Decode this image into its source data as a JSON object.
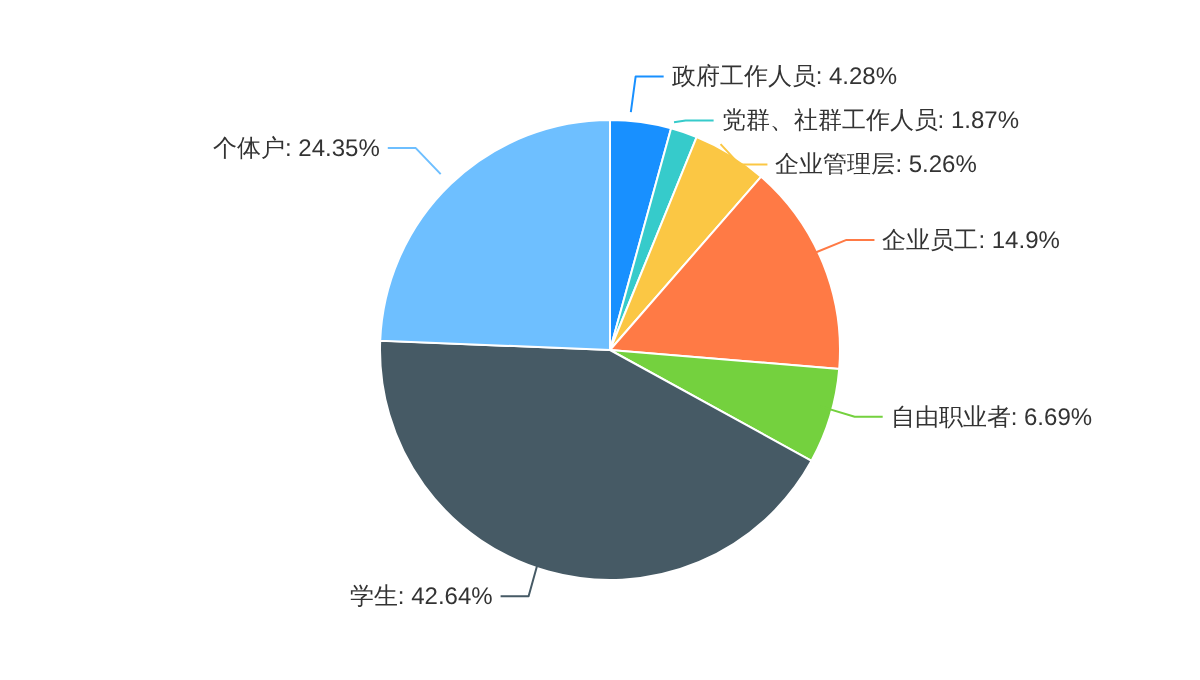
{
  "chart_data": {
    "type": "pie",
    "categories": [
      "政府工作人员",
      "党群、社群工作人员",
      "企业管理层",
      "企业员工",
      "自由职业者",
      "学生",
      "个体户"
    ],
    "values": [
      4.28,
      1.87,
      5.26,
      14.9,
      6.69,
      42.64,
      24.35
    ],
    "value_labels": [
      "4.28%",
      "1.87%",
      "5.26%",
      "14.9%",
      "6.69%",
      "42.64%",
      "24.35%"
    ],
    "colors": [
      "#1890ff",
      "#36cbcb",
      "#fbc744",
      "#ff7a45",
      "#74d13e",
      "#465a65",
      "#6ebfff"
    ],
    "legend": false
  }
}
